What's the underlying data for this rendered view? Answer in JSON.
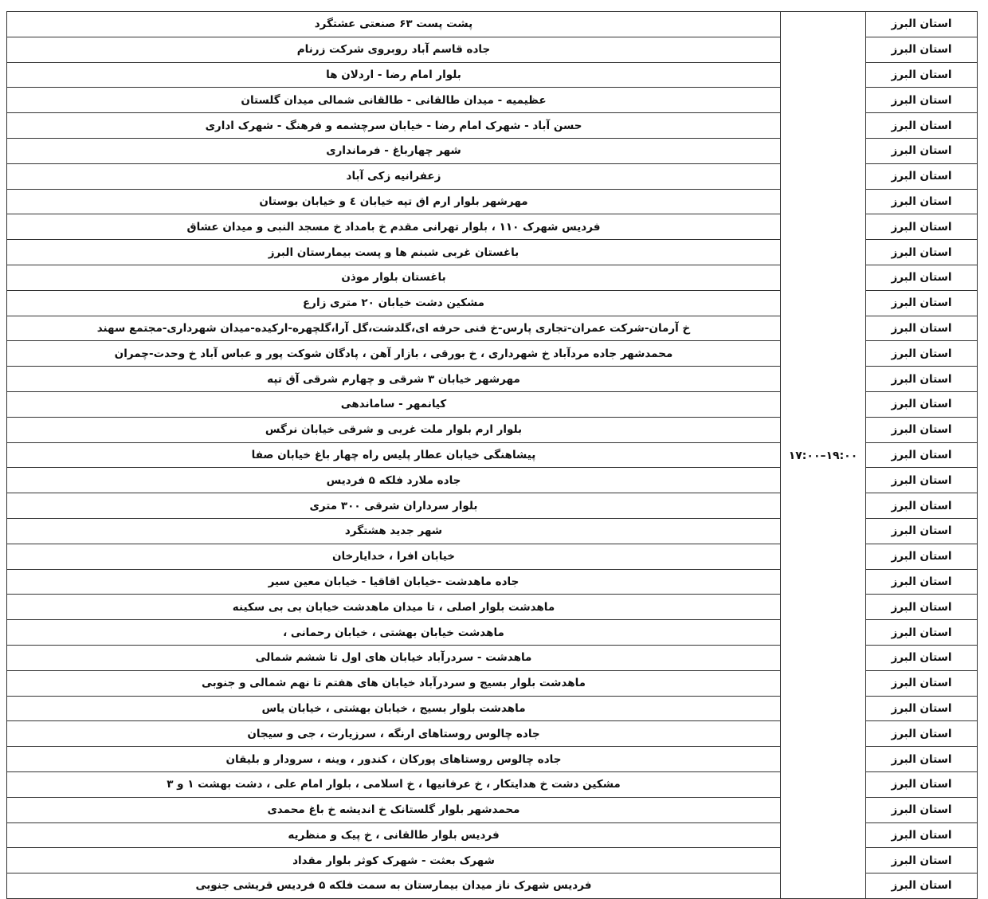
{
  "table": {
    "time_range": "۱۷:۰۰–۱۹:۰۰",
    "rows": [
      {
        "province": "استان البرز",
        "address": "پشت پست ۶۳ صنعتی عشتگرد"
      },
      {
        "province": "استان البرز",
        "address": "جاده قاسم آباد روبروی شرکت زرنام"
      },
      {
        "province": "استان البرز",
        "address": "بلوار امام رضا - اردلان ها"
      },
      {
        "province": "استان البرز",
        "address": "عظیمیه - میدان طالقانی - طالقانی شمالی میدان گلستان"
      },
      {
        "province": "استان البرز",
        "address": "حسن آباد - شهرک امام رضا - خیابان سرچشمه و فرهنگ  - شهرک اداری"
      },
      {
        "province": "استان البرز",
        "address": "شهر چهارباغ - فرمانداری"
      },
      {
        "province": "استان البرز",
        "address": "زعفرانیه زکی آباد"
      },
      {
        "province": "استان البرز",
        "address": "مهرشهر بلوار ارم اق تپه خیابان ٤ و خیابان بوستان"
      },
      {
        "province": "استان البرز",
        "address": "فردیس شهرک ۱۱۰ ، بلوار تهرانی مقدم خ بامداد خ مسجد النبی و میدان عشاق"
      },
      {
        "province": "استان البرز",
        "address": "باغستان غربی شبنم ها و پست بیمارستان البرز"
      },
      {
        "province": "استان البرز",
        "address": "باغستان بلوار موذن"
      },
      {
        "province": "استان البرز",
        "address": "مشکین دشت خیابان ۲۰ متری زارع"
      },
      {
        "province": "استان البرز",
        "address": "خ آرمان-شرکت عمران-تجاری پارس-خ فنی حرفه ای،گلدشت،گل آرا،گلچهره-ارکیده-میدان شهرداری-مجتمع سهند"
      },
      {
        "province": "استان البرز",
        "address": "محمدشهر جاده مردآباد خ شهرداری  ، خ بورقی ، بازار آهن ، پادگان شوکت پور و عباس آباد خ وحدت-چمران"
      },
      {
        "province": "استان البرز",
        "address": "مهرشهر خیابان ۳ شرقی و چهارم شرقی آق تپه"
      },
      {
        "province": "استان البرز",
        "address": "کیانمهر - ساماندهی"
      },
      {
        "province": "استان البرز",
        "address": "بلوار ارم بلوار ملت غربی و شرقی خیابان نرگس"
      },
      {
        "province": "استان البرز",
        "address": "پیشاهنگی خیابان عطار پلیس راه چهار باغ خیابان صفا"
      },
      {
        "province": "استان البرز",
        "address": "جاده ملارد فلکه ۵ فردیس"
      },
      {
        "province": "استان البرز",
        "address": "بلوار سرداران شرقی ۳۰۰ متری"
      },
      {
        "province": "استان البرز",
        "address": "شهر جدید هشتگرد"
      },
      {
        "province": "استان البرز",
        "address": "خیابان افرا ، خدایارخان"
      },
      {
        "province": "استان البرز",
        "address": "جاده ماهدشت -خیابان اقاقیا - خیابان معین سیر"
      },
      {
        "province": "استان البرز",
        "address": "ماهدشت بلوار اصلی ، تا میدان ماهدشت خیابان بی بی سکینه"
      },
      {
        "province": "استان البرز",
        "address": "ماهدشت خیابان بهشتی ، خیابان رحمانی ،"
      },
      {
        "province": "استان البرز",
        "address": "ماهدشت - سردرآباد خیابان های اول تا ششم شمالی"
      },
      {
        "province": "استان البرز",
        "address": "ماهدشت بلوار بسیج و سردرآباد خیابان های هفتم تا نهم شمالی و جنوبی"
      },
      {
        "province": "استان البرز",
        "address": "ماهدشت بلوار بسیج ، خیابان بهشتی ، خیابان یاس"
      },
      {
        "province": "استان البرز",
        "address": "جاده چالوس روستاهای ارنگه ، سرزیارت ، جی و سیجان"
      },
      {
        "province": "استان البرز",
        "address": "جاده چالوس روستاهای پورکان  ، کندور ، وینه ، سرودار و بلیقان"
      },
      {
        "province": "استان البرز",
        "address": "مشکین دشت  خ هدایتکار ، خ عرفانیها  ، خ اسلامی ، بلوار امام علی ،  دشت بهشت ۱ و ۳"
      },
      {
        "province": "استان البرز",
        "address": "محمدشهر بلوار گلستانک خ اندیشه خ باغ محمدی"
      },
      {
        "province": "استان البرز",
        "address": "فردیس بلوار طالقانی ، خ پیک و منظریه"
      },
      {
        "province": "استان البرز",
        "address": "شهرک بعثت - شهرک کوثر بلوار مقداد"
      },
      {
        "province": "استان البرز",
        "address": "فردیس شهرک ناز  میدان بیمارستان به سمت فلکه ۵ فردیس   قریشی جنوبی"
      }
    ]
  }
}
